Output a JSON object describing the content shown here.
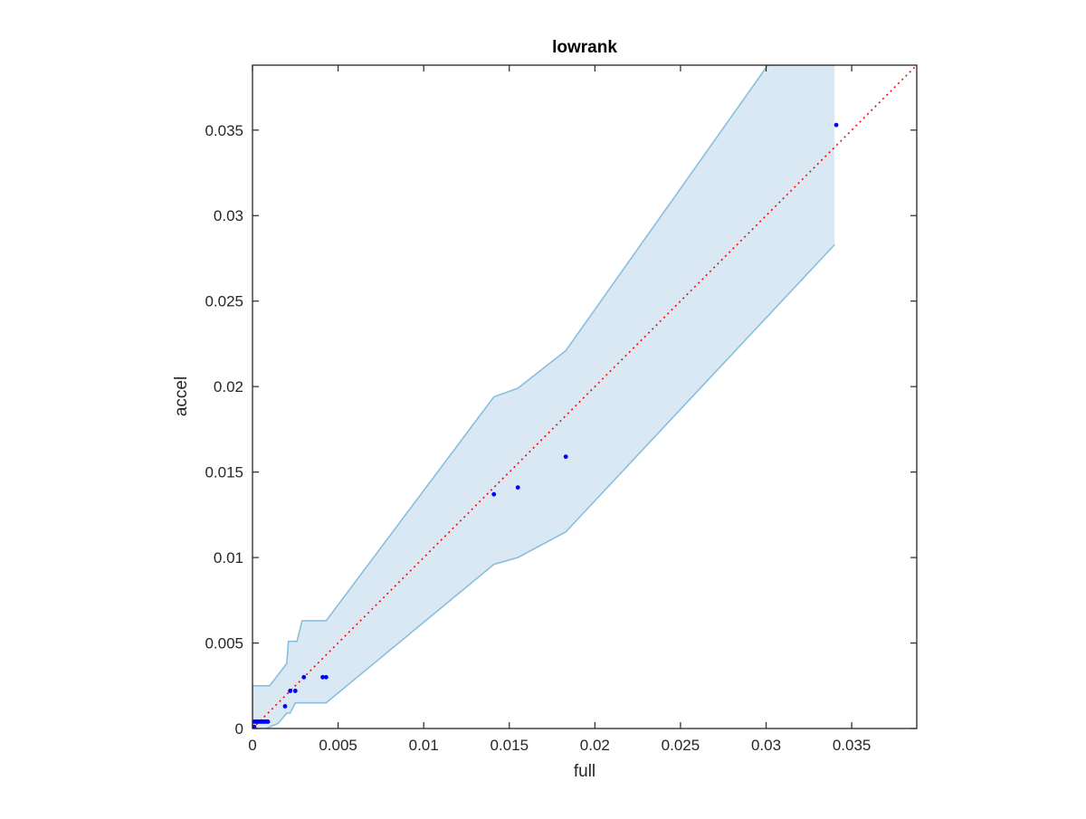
{
  "chart_data": {
    "type": "scatter",
    "title": "lowrank",
    "xlabel": "full",
    "ylabel": "accel",
    "xlim": [
      0,
      0.0388
    ],
    "ylim": [
      0,
      0.0388
    ],
    "grid": false,
    "box": true,
    "xticks": [
      0,
      0.005,
      0.01,
      0.015,
      0.02,
      0.025,
      0.03,
      0.035
    ],
    "xtick_labels": [
      "0",
      "0.005",
      "0.01",
      "0.015",
      "0.02",
      "0.025",
      "0.03",
      "0.035"
    ],
    "yticks": [
      0,
      0.005,
      0.01,
      0.015,
      0.02,
      0.025,
      0.03,
      0.035
    ],
    "ytick_labels": [
      "0",
      "0.005",
      "0.01",
      "0.015",
      "0.02",
      "0.025",
      "0.03",
      "0.035"
    ],
    "colors": {
      "band_fill": "#dae8f4",
      "band_edge": "#88bfe0",
      "points": "#0000ff",
      "reference_line": "#ff0000",
      "axes": "#262626"
    },
    "reference_line": {
      "x": [
        0,
        0.0388
      ],
      "y": [
        0,
        0.0388
      ],
      "style": "dotted"
    },
    "band": {
      "upper": [
        [
          0,
          0.0025
        ],
        [
          0.001,
          0.0025
        ],
        [
          0.002,
          0.0038
        ],
        [
          0.0021,
          0.0051
        ],
        [
          0.0026,
          0.0051
        ],
        [
          0.0029,
          0.0063
        ],
        [
          0.0043,
          0.0063
        ],
        [
          0.0141,
          0.0194
        ],
        [
          0.0155,
          0.0199
        ],
        [
          0.0183,
          0.0221
        ],
        [
          0.0301,
          0.0388
        ],
        [
          0.034,
          0.0388
        ]
      ],
      "lower": [
        [
          0.034,
          0.0283
        ],
        [
          0.0183,
          0.0115
        ],
        [
          0.0155,
          0.01
        ],
        [
          0.0141,
          0.0096
        ],
        [
          0.0043,
          0.0015
        ],
        [
          0.0025,
          0.0015
        ],
        [
          0.0022,
          0.0009
        ],
        [
          0.002,
          0.0009
        ],
        [
          0.0015,
          0.0003
        ],
        [
          0.0008,
          0.0
        ],
        [
          0,
          0.0
        ]
      ]
    },
    "points": [
      {
        "x": 0.0,
        "y": 0.0
      },
      {
        "x": 0.0001,
        "y": 0.0001
      },
      {
        "x": 0.0001,
        "y": 0.0004
      },
      {
        "x": 0.0002,
        "y": 0.0004
      },
      {
        "x": 0.0003,
        "y": 0.0004
      },
      {
        "x": 0.0004,
        "y": 0.0004
      },
      {
        "x": 0.0005,
        "y": 0.0004
      },
      {
        "x": 0.0006,
        "y": 0.0004
      },
      {
        "x": 0.0007,
        "y": 0.0004
      },
      {
        "x": 0.0008,
        "y": 0.0004
      },
      {
        "x": 0.0009,
        "y": 0.0004
      },
      {
        "x": 0.0019,
        "y": 0.0013
      },
      {
        "x": 0.0022,
        "y": 0.0022
      },
      {
        "x": 0.0025,
        "y": 0.0022
      },
      {
        "x": 0.003,
        "y": 0.003
      },
      {
        "x": 0.0041,
        "y": 0.003
      },
      {
        "x": 0.0043,
        "y": 0.003
      },
      {
        "x": 0.0141,
        "y": 0.0137
      },
      {
        "x": 0.0155,
        "y": 0.0141
      },
      {
        "x": 0.0183,
        "y": 0.0159
      },
      {
        "x": 0.0341,
        "y": 0.0353
      }
    ]
  }
}
